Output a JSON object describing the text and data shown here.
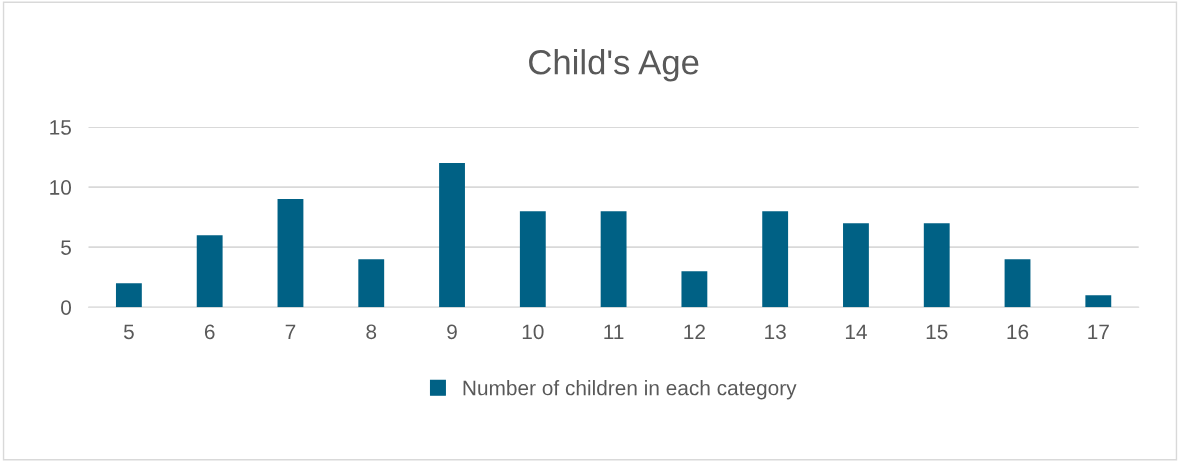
{
  "chart_data": {
    "type": "bar",
    "title": "Child's Age",
    "categories": [
      "5",
      "6",
      "7",
      "8",
      "9",
      "10",
      "11",
      "12",
      "13",
      "14",
      "15",
      "16",
      "17"
    ],
    "series": [
      {
        "name": "Number of children in each category",
        "color": "#006185",
        "values": [
          2,
          6,
          9,
          4,
          12,
          8,
          8,
          3,
          8,
          7,
          7,
          4,
          1
        ]
      }
    ],
    "ylim": [
      0,
      15
    ],
    "yticks": [
      0,
      5,
      10,
      15
    ],
    "grid": "y",
    "legend": "bottom"
  }
}
